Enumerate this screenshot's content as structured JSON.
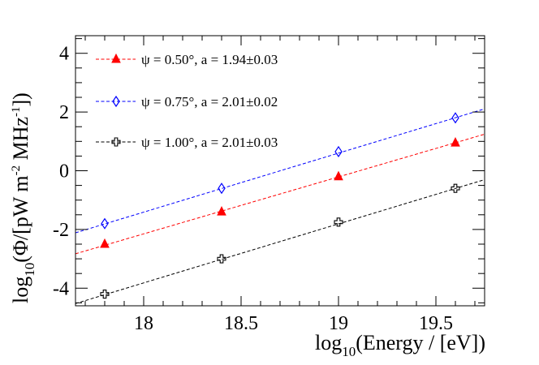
{
  "chart_data": {
    "type": "scatter",
    "xlim": [
      17.65,
      19.75
    ],
    "ylim": [
      -4.6,
      4.6
    ],
    "x_ticks": [
      18,
      18.5,
      19,
      19.5
    ],
    "x_tick_labels": [
      "18",
      "18.5",
      "19",
      "19.5"
    ],
    "y_ticks": [
      -4,
      -2,
      0,
      2,
      4
    ],
    "y_tick_labels": [
      "-4",
      "-2",
      "0",
      "2",
      "4"
    ],
    "xlabel": {
      "prefix": "log",
      "sub": "10",
      "rest": "(Energy / [eV])"
    },
    "ylabel": {
      "prefix": "log",
      "sub": "10",
      "a": "(Φ/[pW m",
      "sup1": "-2",
      "b": " MHz",
      "sup2": "-1",
      "c": "])"
    },
    "legend_position": "top-left",
    "grid": false,
    "series": [
      {
        "name": "ψ = 0.50°, a = 1.94±0.03",
        "marker": "filled-triangle",
        "color": "#ff0000",
        "x": [
          17.8,
          18.4,
          19.0,
          19.6
        ],
        "y": [
          -2.5,
          -1.4,
          -0.2,
          0.95
        ],
        "fit": {
          "slope": 1.94,
          "intercept": -37.07
        }
      },
      {
        "name": "ψ = 0.75°, a = 2.01±0.02",
        "marker": "open-diamond",
        "color": "#0000ff",
        "x": [
          17.8,
          18.4,
          19.0,
          19.6
        ],
        "y": [
          -1.8,
          -0.6,
          0.65,
          1.8
        ],
        "fit": {
          "slope": 2.01,
          "intercept": -37.59
        }
      },
      {
        "name": "ψ = 1.00°, a = 2.01±0.03",
        "marker": "open-cross",
        "color": "#000000",
        "x": [
          17.8,
          18.4,
          19.0,
          19.6
        ],
        "y": [
          -4.2,
          -3.0,
          -1.75,
          -0.6
        ],
        "fit": {
          "slope": 2.01,
          "intercept": -40.0
        }
      }
    ]
  }
}
